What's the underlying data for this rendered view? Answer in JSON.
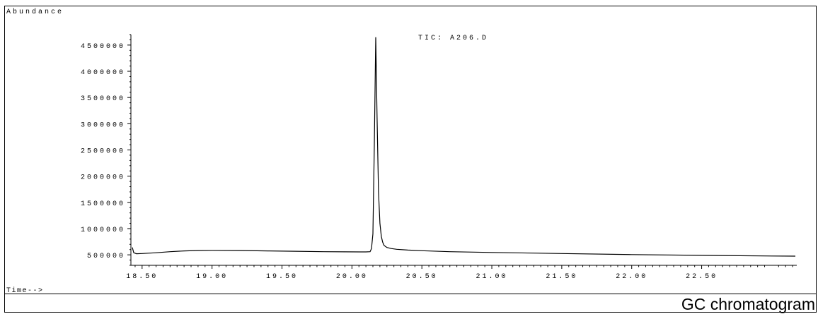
{
  "figure": {
    "caption": "GC chromatogram"
  },
  "colors": {
    "line": "#000000",
    "background": "#ffffff"
  },
  "chart_data": {
    "type": "line",
    "title": "TIC: A206.D",
    "ylabel": "Abundance",
    "xlabel": "Time-->",
    "xlim": [
      18.42,
      23.18
    ],
    "ylim": [
      300000,
      4700000
    ],
    "x_ticks": [
      18.5,
      19.0,
      19.5,
      20.0,
      20.5,
      21.0,
      21.5,
      22.0,
      22.5
    ],
    "x_tick_labels": [
      "18.50",
      "19.00",
      "19.50",
      "20.00",
      "20.50",
      "21.00",
      "21.50",
      "22.00",
      "22.50"
    ],
    "y_ticks": [
      500000,
      1000000,
      1500000,
      2000000,
      2500000,
      3000000,
      3500000,
      4000000,
      4500000
    ],
    "y_tick_labels": [
      "500000",
      "1000000",
      "1500000",
      "2000000",
      "2500000",
      "3000000",
      "3500000",
      "4000000",
      "4500000"
    ],
    "grid": false,
    "series": [
      {
        "x": [
          18.43,
          18.44,
          18.46,
          18.5,
          18.6,
          18.7,
          18.8,
          18.9,
          19.0,
          19.2,
          19.4,
          19.6,
          19.8,
          19.95,
          20.1,
          20.13,
          20.14,
          20.15,
          20.16,
          20.17,
          20.18,
          20.19,
          20.2,
          20.21,
          20.22,
          20.23,
          20.25,
          20.28,
          20.32,
          20.4,
          20.5,
          20.7,
          21.0,
          21.5,
          22.0,
          22.5,
          23.0,
          23.17
        ],
        "y": [
          640000,
          540000,
          520000,
          525000,
          540000,
          560000,
          575000,
          582000,
          585000,
          582000,
          575000,
          568000,
          560000,
          557000,
          555000,
          560000,
          620000,
          900000,
          2600000,
          4650000,
          3100000,
          1700000,
          1100000,
          850000,
          740000,
          680000,
          640000,
          620000,
          605000,
          590000,
          578000,
          560000,
          545000,
          525000,
          505000,
          490000,
          478000,
          475000
        ]
      }
    ]
  }
}
